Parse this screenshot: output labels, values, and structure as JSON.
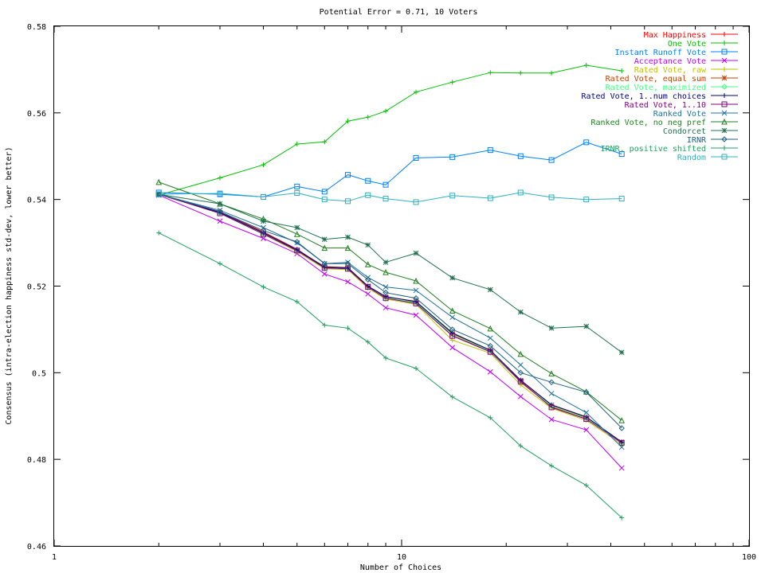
{
  "chart_data": {
    "type": "line",
    "title": "Potential Error = 0.71, 10 Voters",
    "xlabel": "Number of Choices",
    "ylabel": "Consensus (intra-election happiness std-dev, lower better)",
    "x_scale": "log",
    "xlim": [
      1,
      100
    ],
    "ylim": [
      0.46,
      0.58
    ],
    "x_ticks": [
      1,
      10,
      100
    ],
    "x_tick_labels": [
      "1",
      "10",
      "100"
    ],
    "y_ticks": [
      0.46,
      0.48,
      0.5,
      0.52,
      0.54,
      0.56,
      0.58
    ],
    "y_tick_labels": [
      "0.46",
      "0.48",
      "0.5",
      "0.52",
      "0.54",
      "0.56",
      "0.58"
    ],
    "grid": false,
    "legend_position": "top-right",
    "x": [
      2,
      3,
      4,
      5,
      6,
      7,
      8,
      9,
      11,
      14,
      18,
      22,
      27,
      34,
      43
    ],
    "series": [
      {
        "name": "Max Happiness",
        "color": "#ff0000",
        "marker": "plus",
        "values": [
          0.5412,
          0.5372,
          0.5325,
          0.5285,
          0.5243,
          0.524,
          0.5198,
          0.5172,
          0.5162,
          0.5085,
          0.505,
          0.4978,
          0.4922,
          0.4895,
          0.4838
        ]
      },
      {
        "name": "One Vote",
        "color": "#00c000",
        "marker": "plus",
        "values": [
          0.541,
          0.545,
          0.548,
          0.5528,
          0.5533,
          0.5581,
          0.559,
          0.5604,
          0.5648,
          0.5671,
          0.5693,
          0.5692,
          0.5692,
          0.571,
          0.5697
        ]
      },
      {
        "name": "Instant Runoff Vote",
        "color": "#0080ff",
        "marker": "square",
        "values": [
          0.5416,
          0.5412,
          0.5406,
          0.543,
          0.5418,
          0.5457,
          0.5443,
          0.5434,
          0.5496,
          0.5498,
          0.5514,
          0.55,
          0.5491,
          0.5532,
          0.5505
        ]
      },
      {
        "name": "Acceptance Vote",
        "color": "#c000ff",
        "marker": "x",
        "values": [
          0.541,
          0.535,
          0.531,
          0.5275,
          0.5228,
          0.521,
          0.5182,
          0.515,
          0.5133,
          0.5058,
          0.5002,
          0.4945,
          0.4892,
          0.4868,
          0.478
        ]
      },
      {
        "name": "Rated Vote, raw",
        "color": "#c0c000",
        "marker": "plus",
        "values": [
          0.5412,
          0.5368,
          0.532,
          0.528,
          0.524,
          0.5238,
          0.5195,
          0.517,
          0.5158,
          0.5075,
          0.5045,
          0.4972,
          0.4918,
          0.489,
          0.4835
        ]
      },
      {
        "name": "Rated Vote, equal sum",
        "color": "#c04000",
        "marker": "star",
        "values": [
          0.5412,
          0.537,
          0.5322,
          0.5283,
          0.5245,
          0.5243,
          0.52,
          0.5175,
          0.5165,
          0.509,
          0.5052,
          0.4982,
          0.4925,
          0.4897,
          0.484
        ]
      },
      {
        "name": "Rated Vote, maximized",
        "color": "#40ff80",
        "marker": "diamond",
        "values": [
          0.5412,
          0.5369,
          0.5321,
          0.5282,
          0.5242,
          0.5241,
          0.5198,
          0.5173,
          0.5162,
          0.5088,
          0.505,
          0.4979,
          0.4923,
          0.4895,
          0.4838
        ]
      },
      {
        "name": "Rated Vote, 1..num choices",
        "color": "#000080",
        "marker": "plus",
        "values": [
          0.5412,
          0.537,
          0.5323,
          0.5284,
          0.5244,
          0.5242,
          0.52,
          0.5176,
          0.5164,
          0.5092,
          0.5052,
          0.4983,
          0.4926,
          0.4898,
          0.484
        ]
      },
      {
        "name": "Rated Vote, 1..10",
        "color": "#800080",
        "marker": "square",
        "values": [
          0.5412,
          0.5368,
          0.532,
          0.5282,
          0.5242,
          0.524,
          0.5198,
          0.5172,
          0.516,
          0.5085,
          0.5048,
          0.498,
          0.492,
          0.4893,
          0.4838
        ]
      },
      {
        "name": "Ranked Vote",
        "color": "#2070a0",
        "marker": "x",
        "values": [
          0.5412,
          0.5375,
          0.5335,
          0.53,
          0.5252,
          0.5255,
          0.522,
          0.5198,
          0.519,
          0.5128,
          0.508,
          0.5018,
          0.4952,
          0.4908,
          0.4828
        ]
      },
      {
        "name": "Ranked Vote, no neg pref",
        "color": "#208020",
        "marker": "triangle",
        "values": [
          0.544,
          0.539,
          0.5355,
          0.532,
          0.5288,
          0.5288,
          0.525,
          0.5232,
          0.5212,
          0.5143,
          0.5102,
          0.5043,
          0.4998,
          0.4956,
          0.489
        ]
      },
      {
        "name": "Condorcet",
        "color": "#207050",
        "marker": "star",
        "values": [
          0.5412,
          0.539,
          0.535,
          0.5335,
          0.5308,
          0.5313,
          0.5295,
          0.5255,
          0.5276,
          0.5219,
          0.5192,
          0.514,
          0.5103,
          0.5107,
          0.5047
        ]
      },
      {
        "name": "IRNR",
        "color": "#206080",
        "marker": "diamond",
        "values": [
          0.5412,
          0.5372,
          0.5328,
          0.5302,
          0.5252,
          0.5252,
          0.5215,
          0.5185,
          0.5172,
          0.51,
          0.5062,
          0.5,
          0.4978,
          0.4955,
          0.4872
        ]
      },
      {
        "name": "IRNR, positive shifted",
        "color": "#20a060",
        "marker": "plus",
        "values": [
          0.5323,
          0.5252,
          0.5198,
          0.5164,
          0.511,
          0.5103,
          0.5071,
          0.5034,
          0.501,
          0.4944,
          0.4896,
          0.4831,
          0.4785,
          0.474,
          0.4665
        ]
      },
      {
        "name": "Random",
        "color": "#30b0c0",
        "marker": "square",
        "values": [
          0.5412,
          0.5414,
          0.5406,
          0.5415,
          0.54,
          0.5396,
          0.541,
          0.5402,
          0.5394,
          0.5409,
          0.5403,
          0.5416,
          0.5405,
          0.54,
          0.5402
        ]
      }
    ]
  }
}
